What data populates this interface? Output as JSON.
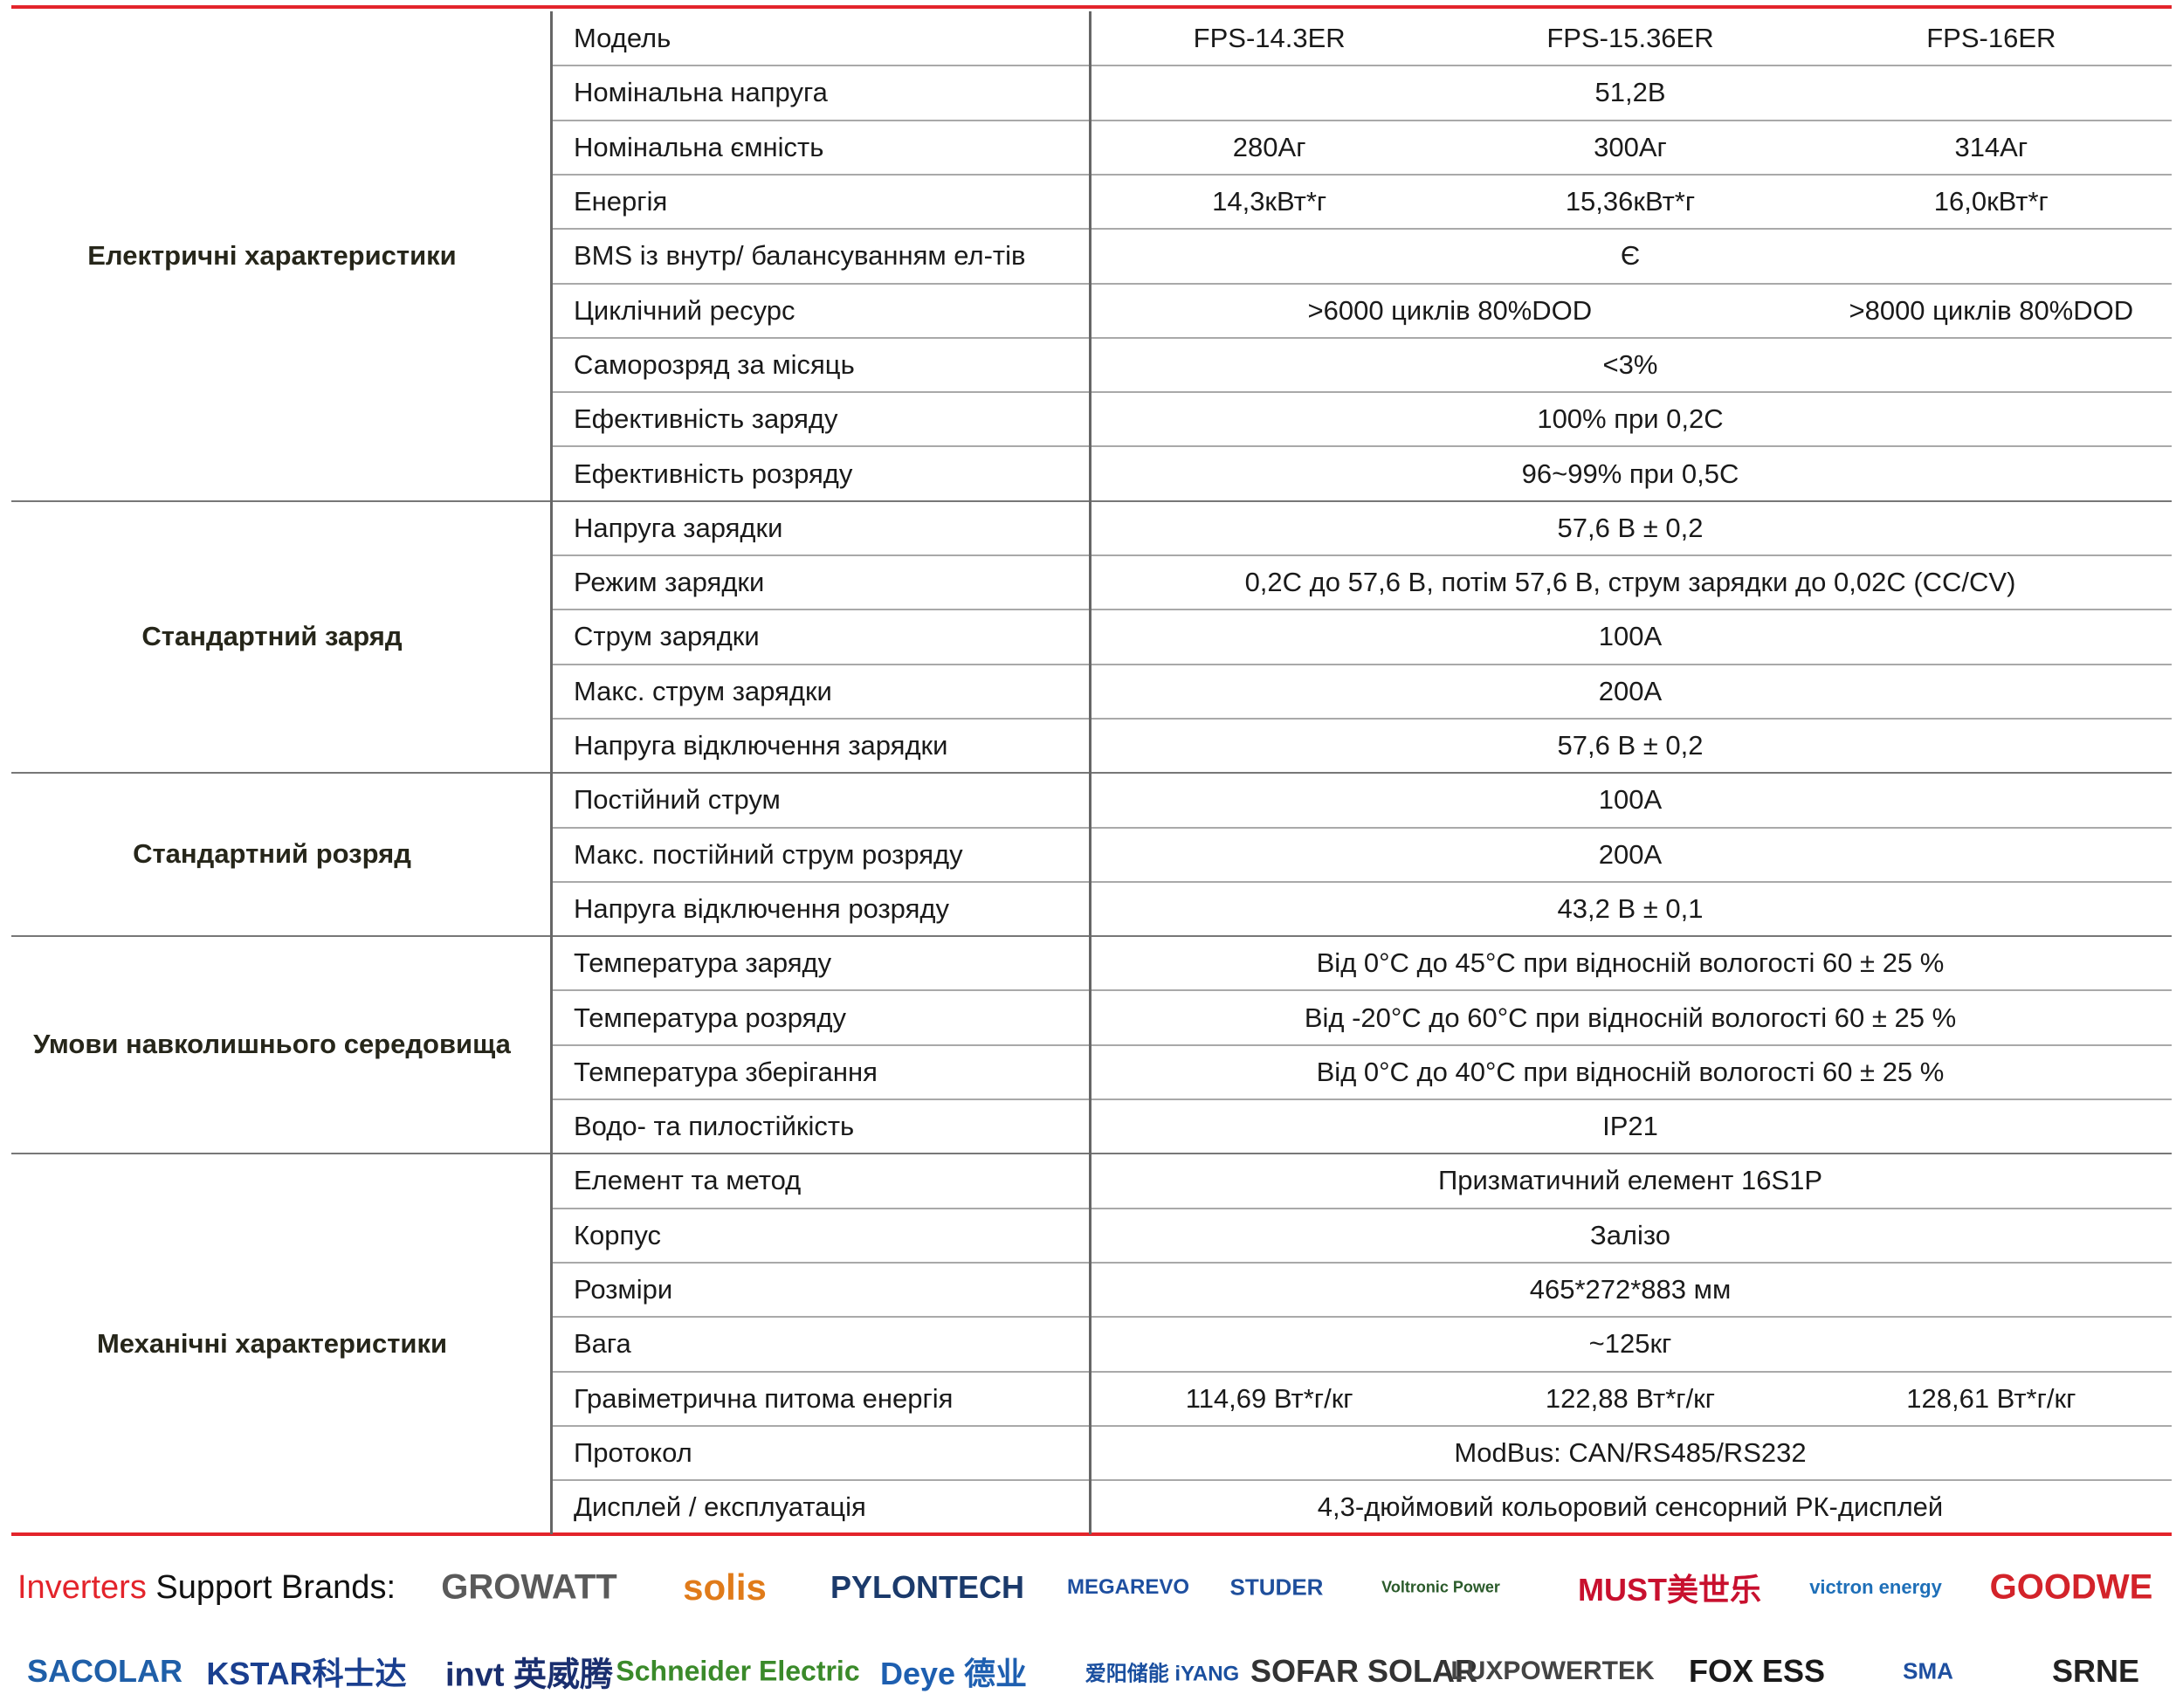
{
  "table": {
    "groups": [
      {
        "name": "Електричні характеристики",
        "rows": [
          {
            "param": "Модель",
            "values": [
              "FPS-14.3ER",
              "FPS-15.36ER",
              "FPS-16ER"
            ]
          },
          {
            "param": "Номінальна напруга",
            "values": [
              "51,2В"
            ]
          },
          {
            "param": "Номінальна ємність",
            "values": [
              "280Аг",
              "300Аг",
              "314Аг"
            ]
          },
          {
            "param": "Енергія",
            "values": [
              "14,3кВт*г",
              "15,36кВт*г",
              "16,0кВт*г"
            ]
          },
          {
            "param": "BMS із внутр/ балансуванням ел-тів",
            "values": [
              "Є"
            ]
          },
          {
            "param": "Циклічний ресурс",
            "values": [
              ">6000 циклів 80%DOD",
              ">8000 циклів 80%DOD"
            ]
          },
          {
            "param": "Саморозряд за місяць",
            "values": [
              "<3%"
            ]
          },
          {
            "param": "Ефективність заряду",
            "values": [
              "100% при 0,2C"
            ]
          },
          {
            "param": "Ефективність розряду",
            "values": [
              "96~99% при 0,5C"
            ]
          }
        ]
      },
      {
        "name": "Стандартний заряд",
        "rows": [
          {
            "param": "Напруга зарядки",
            "values": [
              "57,6 В ± 0,2"
            ]
          },
          {
            "param": "Режим зарядки",
            "values": [
              "0,2C до 57,6 В, потім 57,6 В, струм зарядки до 0,02C (CC/CV)"
            ]
          },
          {
            "param": "Струм зарядки",
            "values": [
              "100А"
            ]
          },
          {
            "param": "Макс. струм зарядки",
            "values": [
              "200А"
            ]
          },
          {
            "param": "Напруга відключення зарядки",
            "values": [
              "57,6 В ± 0,2"
            ]
          }
        ]
      },
      {
        "name": "Стандартний розряд",
        "rows": [
          {
            "param": "Постійний струм",
            "values": [
              "100А"
            ]
          },
          {
            "param": "Макс. постійний струм розряду",
            "values": [
              "200А"
            ]
          },
          {
            "param": "Напруга відключення розряду",
            "values": [
              "43,2 В ± 0,1"
            ]
          }
        ]
      },
      {
        "name": "Умови навколишнього середовища",
        "rows": [
          {
            "param": "Температура заряду",
            "values": [
              "Від 0°C до 45°C при відносній вологості 60 ± 25 %"
            ]
          },
          {
            "param": "Температура розряду",
            "values": [
              "Від -20°C до 60°C при відносній вологості 60 ± 25 %"
            ]
          },
          {
            "param": "Температура зберігання",
            "values": [
              "Від 0°C до 40°C при відносній вологості 60 ± 25 %"
            ]
          },
          {
            "param": "Водо- та пилостійкість",
            "values": [
              "IP21"
            ]
          }
        ]
      },
      {
        "name": "Механічні характеристики",
        "rows": [
          {
            "param": "Елемент та метод",
            "values": [
              "Призматичний елемент 16S1P"
            ]
          },
          {
            "param": "Корпус",
            "values": [
              "Залізо"
            ]
          },
          {
            "param": "Розміри",
            "values": [
              "465*272*883 мм"
            ]
          },
          {
            "param": "Вага",
            "values": [
              "~125кг"
            ]
          },
          {
            "param": "Гравіметрична питома енергія",
            "values": [
              "114,69 Вт*г/кг",
              "122,88 Вт*г/кг",
              "128,61 Вт*г/кг"
            ]
          },
          {
            "param": "Протокол",
            "values": [
              "ModBus: CAN/RS485/RS232"
            ]
          },
          {
            "param": "Дисплей / експлуатація",
            "values": [
              "4,3-дюймовий кольоровий сенсорний РК-дисплей"
            ]
          }
        ]
      }
    ]
  },
  "brands": {
    "intro_highlight": "Inverters",
    "intro_text": "Support Brands:",
    "row1": [
      "GROWATT",
      "solis",
      "PYLONTECH",
      "MEGAREVO",
      "STUDER",
      "Voltronic Power",
      "MUST美世乐",
      "victron energy",
      "GOODWE"
    ],
    "row2": [
      "SACOLAR",
      "KSTAR科士达",
      "invt 英威腾",
      "Schneider Electric",
      "Deye 德业",
      "爱阳储能 iYANG",
      "SOFAR SOLAR",
      "LUXPOWERTEK",
      "FOX ESS",
      "SMA",
      "SRNE"
    ]
  }
}
